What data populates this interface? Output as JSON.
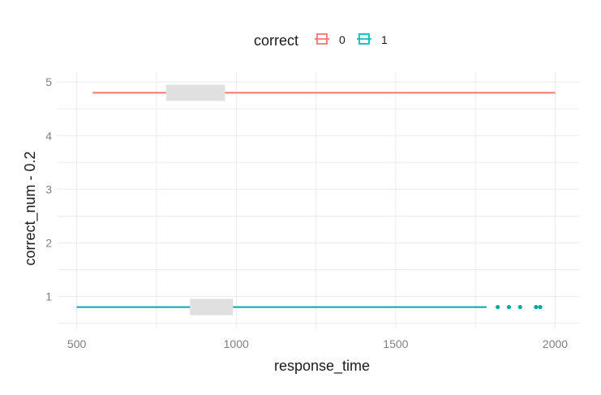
{
  "chart_data": {
    "type": "boxplot",
    "xlabel": "response_time",
    "ylabel": "correct_num - 0.2",
    "xlim": [
      440,
      2075
    ],
    "ylim": [
      0.4,
      5.2
    ],
    "x_ticks": [
      500,
      1000,
      1500,
      2000
    ],
    "y_ticks": [
      1,
      2,
      3,
      4,
      5
    ],
    "grid": true,
    "legend": {
      "title": "correct",
      "position": "top",
      "entries": [
        {
          "label": "0",
          "color": "#F8766D"
        },
        {
          "label": "1",
          "color": "#00BFC4"
        }
      ]
    },
    "series": [
      {
        "name": "0",
        "y": 4.8,
        "whisker_low": 550,
        "q1": 780,
        "q3": 965,
        "whisker_high": 2000,
        "box_fill": "#e0e0e0",
        "color": "#F8766D",
        "outliers": []
      },
      {
        "name": "1",
        "y": 0.8,
        "whisker_low": 500,
        "q1": 855,
        "q3": 990,
        "whisker_high": 1785,
        "box_fill": "#e0e0e0",
        "color": "#00A9A8",
        "outliers": [
          1820,
          1855,
          1890,
          1940,
          1953
        ]
      }
    ]
  }
}
